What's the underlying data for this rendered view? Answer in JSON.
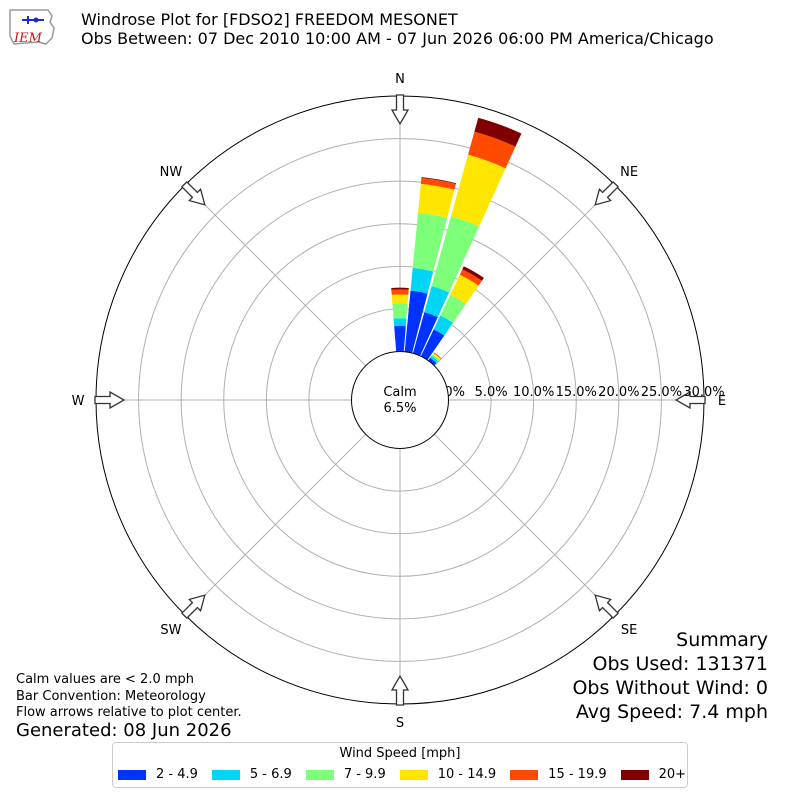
{
  "header": {
    "title": "Windrose Plot for [FDSO2] FREEDOM MESONET",
    "subtitle": "Obs Between: 07 Dec 2010 10:00 AM - 07 Jun 2026 06:00 PM America/Chicago",
    "logo_text": "IEM"
  },
  "calm": {
    "label": "Calm",
    "value": "6.5%"
  },
  "notes": {
    "calm_note": "Calm values are < 2.0 mph",
    "bar_convention": "Bar Convention: Meteorology",
    "flow_arrows": "Flow arrows relative to plot center.",
    "generated": "Generated: 08 Jun 2026"
  },
  "summary": {
    "title": "Summary",
    "obs_used": "Obs Used: 131371",
    "obs_without_wind": "Obs Without Wind: 0",
    "avg_speed": "Avg Speed: 7.4 mph"
  },
  "legend": {
    "title": "Wind Speed [mph]",
    "items": [
      {
        "label": "2 - 4.9",
        "color": "#0033ff"
      },
      {
        "label": "5 - 6.9",
        "color": "#00d5f5"
      },
      {
        "label": "7 - 9.9",
        "color": "#7dff7a"
      },
      {
        "label": "10 - 14.9",
        "color": "#ffe600"
      },
      {
        "label": "15 - 19.9",
        "color": "#ff4a00"
      },
      {
        "label": "20+",
        "color": "#800000"
      }
    ]
  },
  "chart_data": {
    "type": "windrose",
    "title": "Windrose Plot for [FDSO2] FREEDOM MESONET",
    "radial_ticks": [
      "0.0%",
      "5.0%",
      "10.0%",
      "15.0%",
      "20.0%",
      "25.0%",
      "30.0%"
    ],
    "radial_max": 30,
    "compass_labels": [
      {
        "label": "N",
        "dir": 0
      },
      {
        "label": "NE",
        "dir": 45
      },
      {
        "label": "E",
        "dir": 90
      },
      {
        "label": "SE",
        "dir": 135
      },
      {
        "label": "S",
        "dir": 180
      },
      {
        "label": "SW",
        "dir": 225
      },
      {
        "label": "W",
        "dir": 270
      },
      {
        "label": "NW",
        "dir": 315
      }
    ],
    "speed_bins": [
      "2 - 4.9",
      "5 - 6.9",
      "7 - 9.9",
      "10 - 14.9",
      "15 - 19.9",
      "20+"
    ],
    "bar_width_deg": 9,
    "petals": [
      {
        "dir": 0,
        "values": [
          3.0,
          0.9,
          1.8,
          1.0,
          0.6,
          0.2
        ]
      },
      {
        "dir": 10,
        "values": [
          7.2,
          2.7,
          6.5,
          3.4,
          0.7,
          0.1
        ]
      },
      {
        "dir": 20,
        "values": [
          5.0,
          3.2,
          8.5,
          7.5,
          2.8,
          1.7
        ]
      },
      {
        "dir": 30,
        "values": [
          3.5,
          1.8,
          2.7,
          2.6,
          0.7,
          0.4
        ]
      },
      {
        "dir": 40,
        "values": [
          0.4,
          0.3,
          0.2,
          0.2,
          0.1,
          0.0
        ]
      }
    ]
  }
}
